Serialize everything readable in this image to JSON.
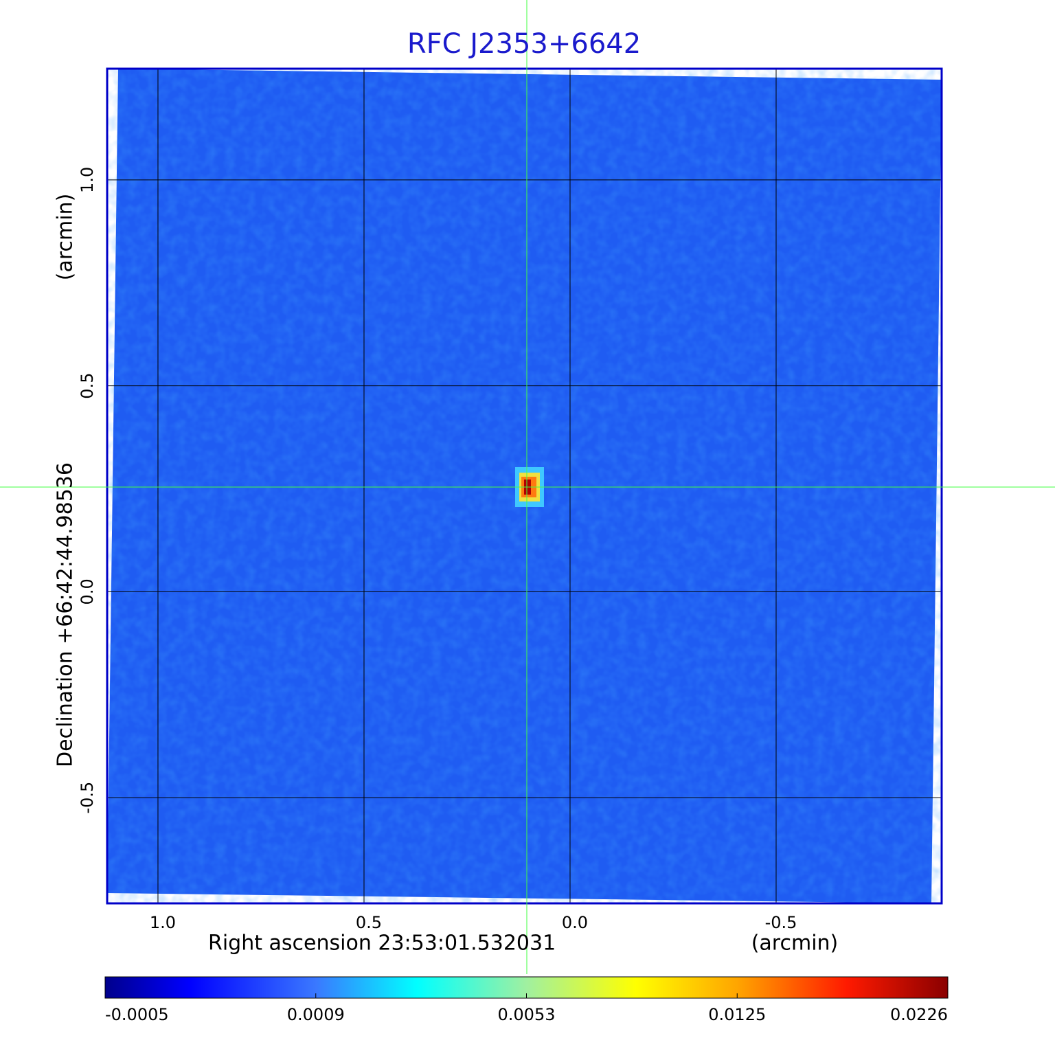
{
  "chart_data": {
    "type": "image",
    "title": "RFC J2353+6642",
    "xlabel": "Right ascension  23:53:01.532031",
    "xunit": "(arcmin)",
    "ylabel": "Declination  +66:42:44.98536",
    "yunit": "(arcmin)",
    "xlim": [
      1.1233,
      -0.9017
    ],
    "xticks": [
      {
        "value": 1,
        "label": "1.0"
      },
      0.5,
      {
        "value": 0,
        "label": "0.0"
      },
      -0.5
    ],
    "ylim": [
      -0.7567,
      1.27
    ],
    "yticks": [
      {
        "value": -0.5,
        "label": "-0.5"
      },
      {
        "value": 0,
        "label": "0.0"
      },
      0.5,
      {
        "value": 1,
        "label": "1.0"
      }
    ],
    "grid": true,
    "colorbar_ticks": [
      {
        "value": -0.0005,
        "label": "-0.0005"
      },
      {
        "value": 0.0009,
        "label": "0.0009"
      },
      {
        "value": 0.0053,
        "label": "0.0053"
      },
      {
        "value": 0.0125,
        "label": "0.0125"
      },
      {
        "value": 0.0226,
        "label": "0.0226"
      }
    ]
  }
}
